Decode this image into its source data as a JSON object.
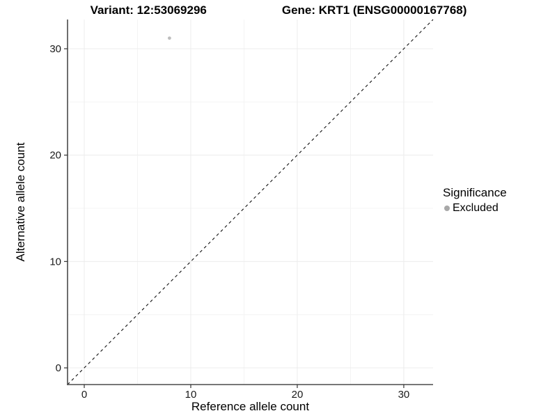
{
  "chart_data": {
    "type": "scatter",
    "title_left": "Variant: 12:53069296",
    "title_right": "Gene: KRT1 (ENSG00000167768)",
    "xlabel": "Reference allele count",
    "ylabel": "Alternative allele count",
    "xlim": [
      -1.57,
      32.75
    ],
    "ylim": [
      -1.57,
      32.75
    ],
    "x_ticks": [
      0,
      10,
      20,
      30
    ],
    "y_ticks": [
      0,
      10,
      20,
      30
    ],
    "x_minor_ticks": [
      5,
      15,
      25
    ],
    "y_minor_ticks": [
      5,
      15,
      25
    ],
    "grid": true,
    "points": [
      {
        "x": 8,
        "y": 31,
        "series": "Excluded"
      }
    ],
    "reference_line": {
      "slope": 1,
      "intercept": 0,
      "style": "dashed"
    },
    "legend": {
      "title": "Significance",
      "position": "right",
      "items": [
        {
          "label": "Excluded",
          "color": "#b3b3b3"
        }
      ]
    },
    "colors": {
      "background": "#ffffff",
      "axis_line": "#4a4a4a",
      "tick_mark": "#333333",
      "grid_major": "#ececec",
      "grid_minor": "#f4f4f4",
      "tick_label": "#1a1a1a",
      "point": "#bdbdbd",
      "legend_key": "#a8a8a8",
      "ref_line": "#111111"
    }
  }
}
